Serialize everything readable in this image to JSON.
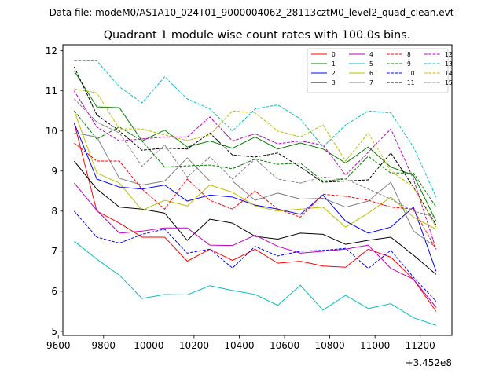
{
  "chart_data": {
    "type": "line",
    "suptitle": "Data file: modeM0/AS1A10_024T01_9000004062_28113cztM0_level2_quad_clean.evt",
    "title": "Quadrant 1 module wise count rates with 100.0s bins.",
    "xlabel": "",
    "ylabel": "",
    "x_offset_label": "+3.452e8",
    "xlim": [
      9620,
      9620,
      11340
    ],
    "ylim": [
      4.9,
      12.15
    ],
    "xticks": [
      9600,
      9800,
      10000,
      10200,
      10400,
      10600,
      10800,
      11000,
      11200
    ],
    "yticks": [
      5,
      6,
      7,
      8,
      9,
      10,
      11,
      12
    ],
    "legend_position": "upper right",
    "x": [
      9670,
      9770,
      9870,
      9970,
      10070,
      10170,
      10270,
      10370,
      10470,
      10570,
      10670,
      10770,
      10870,
      10970,
      11070,
      11170,
      11270
    ],
    "series": [
      {
        "name": "0",
        "color": "#ff0000",
        "dash": "solid",
        "values": [
          10.2,
          8.0,
          7.7,
          7.35,
          7.35,
          6.75,
          7.05,
          6.77,
          7.05,
          6.7,
          6.75,
          6.63,
          6.6,
          7.05,
          6.85,
          6.3,
          5.5
        ]
      },
      {
        "name": "1",
        "color": "#008000",
        "dash": "solid",
        "values": [
          11.5,
          10.6,
          10.58,
          9.75,
          10.02,
          9.6,
          9.75,
          9.57,
          9.85,
          9.55,
          9.7,
          9.55,
          9.2,
          9.6,
          9.1,
          8.9,
          7.75
        ]
      },
      {
        "name": "2",
        "color": "#0000ff",
        "dash": "solid",
        "values": [
          10.2,
          8.8,
          8.6,
          8.55,
          8.65,
          8.25,
          8.4,
          8.35,
          8.15,
          8.05,
          7.92,
          8.4,
          7.75,
          7.45,
          7.6,
          8.1,
          6.5
        ]
      },
      {
        "name": "3",
        "color": "#000000",
        "dash": "solid",
        "values": [
          9.25,
          8.55,
          8.1,
          8.05,
          7.95,
          7.27,
          7.8,
          7.7,
          7.37,
          7.3,
          7.45,
          7.42,
          7.17,
          7.27,
          7.35,
          6.9,
          6.42
        ]
      },
      {
        "name": "4",
        "color": "#bf00bf",
        "dash": "solid",
        "values": [
          8.7,
          8.02,
          7.45,
          7.5,
          7.58,
          7.58,
          7.15,
          7.14,
          7.4,
          7.12,
          6.95,
          7.0,
          7.05,
          7.15,
          6.57,
          6.3,
          5.6
        ]
      },
      {
        "name": "5",
        "color": "#00bfbf",
        "dash": "solid",
        "values": [
          7.25,
          6.8,
          6.4,
          5.82,
          5.92,
          5.91,
          6.14,
          6.02,
          5.92,
          5.65,
          6.15,
          5.53,
          5.9,
          5.57,
          5.69,
          5.34,
          5.15
        ]
      },
      {
        "name": "6",
        "color": "#bfbf00",
        "dash": "solid",
        "values": [
          10.5,
          8.95,
          8.7,
          8.02,
          8.27,
          8.13,
          8.65,
          8.47,
          8.13,
          8.0,
          8.05,
          8.1,
          7.6,
          7.95,
          8.35,
          7.85,
          7.55
        ]
      },
      {
        "name": "7",
        "color": "#808080",
        "dash": "solid",
        "values": [
          9.95,
          9.85,
          8.82,
          8.65,
          8.75,
          9.33,
          8.75,
          8.75,
          8.27,
          8.45,
          8.3,
          8.32,
          8.1,
          8.25,
          8.72,
          7.5,
          7.1
        ]
      },
      {
        "name": "8",
        "color": "#ff0000",
        "dash": "dashed",
        "values": [
          9.7,
          9.25,
          9.25,
          8.55,
          8.05,
          8.8,
          8.27,
          8.05,
          8.5,
          8.05,
          7.85,
          8.42,
          8.37,
          8.27,
          8.1,
          8.05,
          7.05
        ]
      },
      {
        "name": "9",
        "color": "#008000",
        "dash": "dashed",
        "values": [
          10.5,
          9.8,
          10.1,
          9.75,
          9.1,
          9.13,
          9.15,
          9.06,
          9.3,
          9.17,
          9.2,
          8.75,
          8.8,
          9.37,
          8.95,
          8.95,
          8.1
        ]
      },
      {
        "name": "10",
        "color": "#0000ff",
        "dash": "dashed",
        "values": [
          8.0,
          7.35,
          7.2,
          7.42,
          7.55,
          6.95,
          7.05,
          6.58,
          7.12,
          6.88,
          7.0,
          7.02,
          7.07,
          6.57,
          7.02,
          6.35,
          5.75
        ]
      },
      {
        "name": "11",
        "color": "#000000",
        "dash": "dashed",
        "values": [
          11.6,
          10.4,
          10.0,
          9.52,
          9.57,
          9.55,
          9.95,
          9.4,
          9.35,
          9.45,
          9.1,
          8.72,
          8.75,
          8.78,
          9.45,
          8.6,
          7.65
        ]
      },
      {
        "name": "12",
        "color": "#bf00bf",
        "dash": "dashed",
        "values": [
          11.0,
          10.1,
          9.75,
          9.8,
          9.85,
          9.85,
          10.35,
          9.75,
          9.93,
          9.68,
          9.75,
          9.65,
          8.9,
          9.47,
          10.05,
          8.8,
          7.05
        ]
      },
      {
        "name": "13",
        "color": "#00bfbf",
        "dash": "dashed",
        "values": [
          11.75,
          11.75,
          11.1,
          10.7,
          11.35,
          10.8,
          10.55,
          10.0,
          10.55,
          10.65,
          10.3,
          9.6,
          10.15,
          10.5,
          10.45,
          9.6,
          8.35
        ]
      },
      {
        "name": "14",
        "color": "#bfbf00",
        "dash": "dashed",
        "values": [
          11.05,
          10.95,
          10.05,
          10.05,
          9.9,
          9.76,
          9.9,
          10.5,
          10.45,
          10.0,
          9.85,
          10.15,
          9.25,
          9.95,
          9.0,
          8.6,
          7.6
        ]
      },
      {
        "name": "15",
        "color": "#808080",
        "dash": "dashed",
        "values": [
          10.8,
          10.22,
          9.95,
          9.12,
          9.65,
          8.85,
          9.35,
          8.8,
          9.3,
          8.8,
          8.7,
          8.85,
          8.8,
          8.55,
          8.3,
          8.0,
          7.85
        ]
      }
    ]
  }
}
